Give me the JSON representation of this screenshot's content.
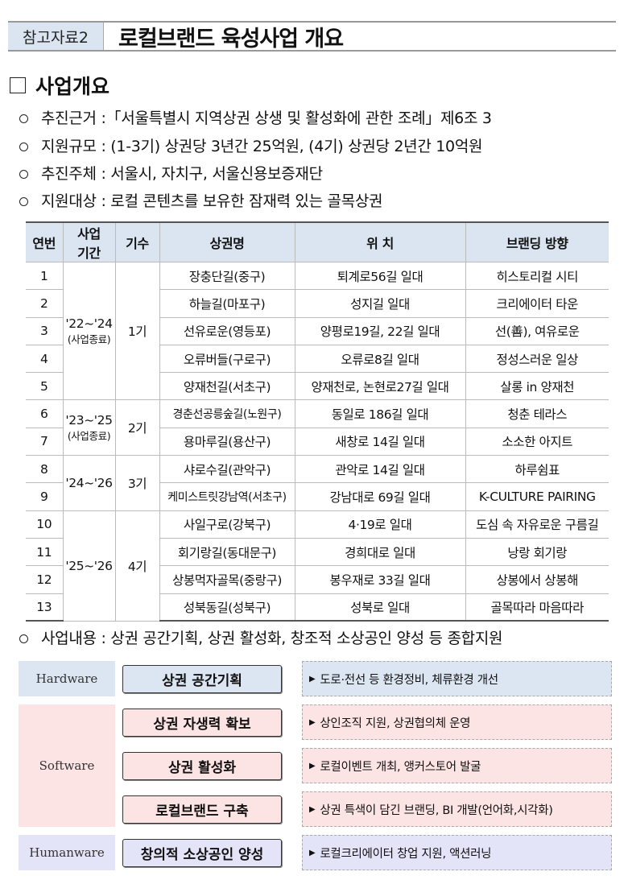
{
  "header": {
    "label": "참고자료2",
    "title": "로컬브랜드 육성사업 개요"
  },
  "section": {
    "title": "사업개요"
  },
  "bullets": [
    "추진근거 :「서울특별시 지역상권 상생 및 활성화에 관한 조례」제6조 3",
    "지원규모 : (1-3기) 상권당 3년간 25억원, (4기) 상권당 2년간 10억원",
    "추진주체 : 서울시, 자치구, 서울신용보증재단",
    "지원대상 : 로컬 콘텐츠를 보유한 잠재력 있는 골목상권"
  ],
  "table": {
    "headers": [
      "연번",
      "사업\n기간",
      "기수",
      "상권명",
      "위 치",
      "브랜딩 방향"
    ],
    "groups": [
      {
        "period": "'22~'24",
        "note": "(사업종료)",
        "gen": "1기",
        "rows": [
          [
            "1",
            "장충단길(중구)",
            "퇴계로56길 일대",
            "히스토리컬 시티"
          ],
          [
            "2",
            "하늘길(마포구)",
            "성지길 일대",
            "크리에이터 타운"
          ],
          [
            "3",
            "선유로운(영등포)",
            "양평로19길, 22길 일대",
            "선(善), 여유로운"
          ],
          [
            "4",
            "오류버들(구로구)",
            "오류로8길 일대",
            "정성스러운 일상"
          ],
          [
            "5",
            "양재천길(서초구)",
            "양재천로, 논현로27길 일대",
            "살롱 in 양재천"
          ]
        ]
      },
      {
        "period": "'23~'25",
        "note": "(사업종료)",
        "gen": "2기",
        "rows": [
          [
            "6",
            "경춘선공릉숲길(노원구)",
            "동일로 186길 일대",
            "청춘 테라스"
          ],
          [
            "7",
            "용마루길(용산구)",
            "새창로 14길 일대",
            "소소한 아지트"
          ]
        ]
      },
      {
        "period": "'24~'26",
        "note": "",
        "gen": "3기",
        "rows": [
          [
            "8",
            "샤로수길(관악구)",
            "관악로 14길 일대",
            "하루쉼표"
          ],
          [
            "9",
            "케미스트릿강남역(서초구)",
            "강남대로 69길 일대",
            "K-CULTURE PAIRING"
          ]
        ]
      },
      {
        "period": "'25~'26",
        "note": "",
        "gen": "4기",
        "rows": [
          [
            "10",
            "사일구로(강북구)",
            "4·19로 일대",
            "도심 속 자유로운 구름길"
          ],
          [
            "11",
            "회기랑길(동대문구)",
            "경희대로 일대",
            "낭랑 회기랑"
          ],
          [
            "12",
            "상봉먹자골목(중랑구)",
            "봉우재로 33길 일대",
            "상봉에서 상봉해"
          ],
          [
            "13",
            "성북동길(성북구)",
            "성북로 일대",
            "골목따라 마음따라"
          ]
        ]
      }
    ]
  },
  "content_bullet": "사업내용 : 상권 공간기획, 상권 활성화, 창조적 소상공인 양성 등 종합지원",
  "diagram": {
    "categories": [
      "Hardware",
      "Software",
      "Humanware"
    ],
    "items": [
      {
        "title": "상권 공간기획",
        "desc": "도로·전선 등 환경정비, 체류환경 개선"
      },
      {
        "title": "상권 자생력 확보",
        "desc": "상인조직 지원, 상권협의체 운영"
      },
      {
        "title": "상권 활성화",
        "desc": "로컬이벤트 개최, 앵커스토어 발굴"
      },
      {
        "title": "로컬브랜드 구축",
        "desc": "상권 특색이 담긴 브랜딩, BI 개발(언어화,시각화)"
      },
      {
        "title": "창의적 소상공인 양성",
        "desc": "로컬크리에이터 창업 지원, 액션러닝"
      }
    ],
    "colors": {
      "hardware": "#dce6f2",
      "software": "#fde4e4",
      "humanware": "#e4e4f8"
    }
  }
}
